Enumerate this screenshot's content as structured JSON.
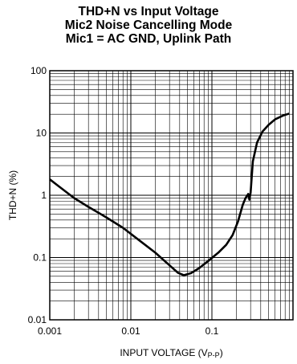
{
  "chart_data": {
    "type": "line",
    "title": [
      "THD+N vs Input Voltage",
      "Mic2 Noise Cancelling Mode",
      "Mic1 = AC GND, Uplink Path"
    ],
    "xlabel": "INPUT VOLTAGE (V",
    "xlabel_sub": "P-P",
    "xlabel_end": ")",
    "ylabel": "THD+N (%)",
    "xscale": "log",
    "yscale": "log",
    "xlim": [
      0.001,
      1.0
    ],
    "ylim": [
      0.01,
      100
    ],
    "x_ticks": [
      "0.001",
      "0.01",
      "0.1"
    ],
    "y_ticks": [
      "0.01",
      "0.1",
      "1",
      "10",
      "100"
    ],
    "grid": true,
    "series": [
      {
        "x": [
          0.001,
          0.0012,
          0.0015,
          0.002,
          0.003,
          0.005,
          0.008,
          0.012,
          0.02,
          0.03,
          0.038,
          0.045,
          0.055,
          0.07,
          0.09,
          0.12,
          0.15,
          0.18,
          0.21,
          0.24,
          0.26,
          0.28,
          0.29,
          0.3,
          0.32,
          0.36,
          0.42,
          0.5,
          0.6,
          0.75,
          0.9
        ],
        "values": [
          1.8,
          1.5,
          1.2,
          0.9,
          0.65,
          0.44,
          0.3,
          0.2,
          0.12,
          0.075,
          0.057,
          0.052,
          0.056,
          0.068,
          0.088,
          0.12,
          0.16,
          0.23,
          0.38,
          0.7,
          0.9,
          1.05,
          0.85,
          1.1,
          3.5,
          7.0,
          10.5,
          13.5,
          16.5,
          19.0,
          20.5
        ]
      }
    ]
  }
}
